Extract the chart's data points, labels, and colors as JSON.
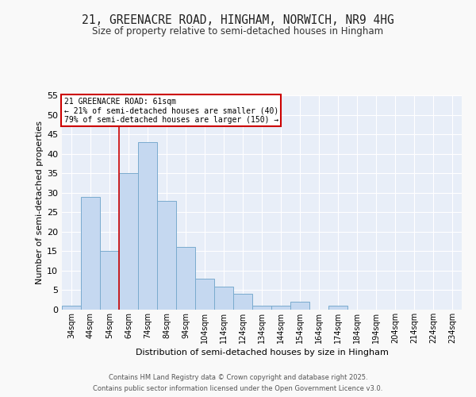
{
  "title_line1": "21, GREENACRE ROAD, HINGHAM, NORWICH, NR9 4HG",
  "title_line2": "Size of property relative to semi-detached houses in Hingham",
  "xlabel": "Distribution of semi-detached houses by size in Hingham",
  "ylabel": "Number of semi-detached properties",
  "bins": [
    "34sqm",
    "44sqm",
    "54sqm",
    "64sqm",
    "74sqm",
    "84sqm",
    "94sqm",
    "104sqm",
    "114sqm",
    "124sqm",
    "134sqm",
    "144sqm",
    "154sqm",
    "164sqm",
    "174sqm",
    "184sqm",
    "194sqm",
    "204sqm",
    "214sqm",
    "224sqm",
    "234sqm"
  ],
  "values": [
    1,
    29,
    15,
    35,
    43,
    28,
    16,
    8,
    6,
    4,
    1,
    1,
    2,
    0,
    1,
    0,
    0,
    0,
    0,
    0,
    0
  ],
  "bar_color": "#c5d8f0",
  "bar_edge_color": "#7aabce",
  "background_color": "#e8eef8",
  "grid_color": "#ffffff",
  "vline_x": 2.5,
  "vline_color": "#cc0000",
  "annotation_title": "21 GREENACRE ROAD: 61sqm",
  "annotation_line2": "← 21% of semi-detached houses are smaller (40)",
  "annotation_line3": "79% of semi-detached houses are larger (150) →",
  "annotation_box_color": "#ffffff",
  "annotation_box_edge": "#cc0000",
  "footer_line1": "Contains HM Land Registry data © Crown copyright and database right 2025.",
  "footer_line2": "Contains public sector information licensed under the Open Government Licence v3.0.",
  "fig_bg": "#f9f9f9",
  "ylim": [
    0,
    55
  ],
  "yticks": [
    0,
    5,
    10,
    15,
    20,
    25,
    30,
    35,
    40,
    45,
    50,
    55
  ]
}
